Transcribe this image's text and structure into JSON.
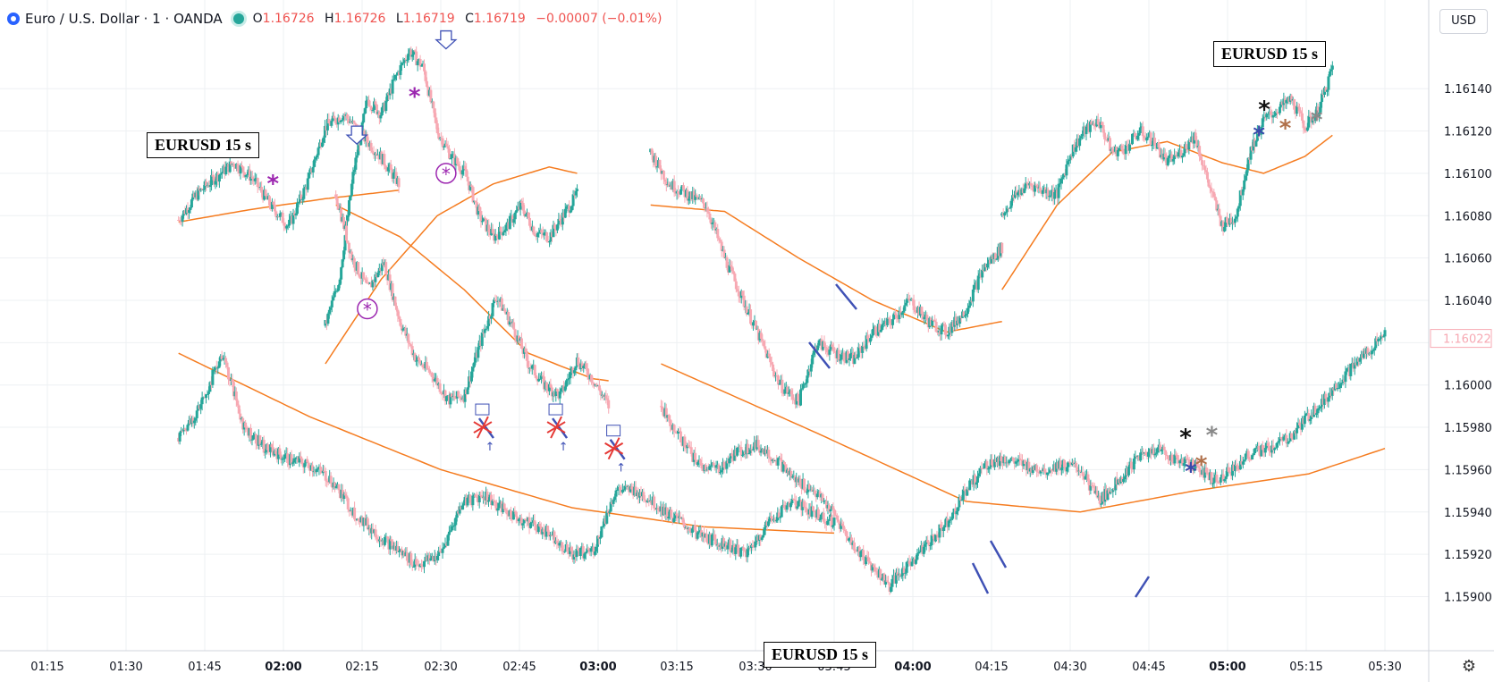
{
  "header": {
    "symbol": "Euro / U.S. Dollar",
    "sep1": "·",
    "interval": "1",
    "sep2": "·",
    "source": "OANDA",
    "o_label": "O",
    "o_value": "1.16726",
    "h_label": "H",
    "h_value": "1.16726",
    "l_label": "L",
    "l_value": "1.16719",
    "c_label": "C",
    "c_value": "1.16719",
    "change": "−0.00007 (−0.01%)"
  },
  "currency_button": "USD",
  "watermarks": [
    "EURUSD  15 s",
    "EURUSD  15 s",
    "EURUSD  15 s"
  ],
  "colors": {
    "up": "#26a69a",
    "down": "#ef5350",
    "down_light": "#f7a9b3",
    "ma": "#f57c20",
    "arrow": "#3f51b5",
    "cross": "#e53935",
    "star_purple": "#9c27b0",
    "grid": "#eef0f3",
    "axis_text": "#131722",
    "last_price_label": "#f7a9b3"
  },
  "icons": {
    "logo": "euro-dollar-logo",
    "live": "market-open-dot",
    "settings": "gear-icon"
  },
  "chart_data": {
    "type": "candlestick",
    "title": "Euro / U.S. Dollar · 1 · OANDA",
    "y_range": [
      1.15885,
      1.16165
    ],
    "y_ticks": [
      "1.16140",
      "1.16120",
      "1.16100",
      "1.16080",
      "1.16060",
      "1.16040",
      "1.16020",
      "1.16000",
      "1.15980",
      "1.15960",
      "1.15940",
      "1.15920",
      "1.15900"
    ],
    "x_ticks": [
      "01:15",
      "01:30",
      "01:45",
      "02:00",
      "02:15",
      "02:30",
      "02:45",
      "03:00",
      "03:15",
      "03:30",
      "03:45",
      "04:00",
      "04:15",
      "04:30",
      "04:45",
      "05:00",
      "05:15",
      "05:30"
    ],
    "x_ticks_bold": [
      "02:00",
      "03:00",
      "04:00",
      "05:00"
    ],
    "last_price": "1.16022",
    "segments": [
      {
        "name": "A",
        "start": "01:40",
        "end": "02:22",
        "points": [
          [
            0,
            1.16078
          ],
          [
            5,
            1.1609
          ],
          [
            10,
            1.16098
          ],
          [
            15,
            1.16105
          ],
          [
            20,
            1.16098
          ],
          [
            25,
            1.16085
          ],
          [
            30,
            1.16075
          ],
          [
            35,
            1.16095
          ],
          [
            40,
            1.16122
          ],
          [
            45,
            1.16128
          ],
          [
            50,
            1.16118
          ],
          [
            55,
            1.16108
          ],
          [
            60,
            1.16095
          ]
        ]
      },
      {
        "name": "B",
        "start": "02:08",
        "end": "02:56",
        "points": [
          [
            0,
            1.16028
          ],
          [
            5,
            1.1605
          ],
          [
            10,
            1.161
          ],
          [
            15,
            1.16135
          ],
          [
            20,
            1.16128
          ],
          [
            25,
            1.16145
          ],
          [
            30,
            1.16158
          ],
          [
            35,
            1.1615
          ],
          [
            40,
            1.1612
          ],
          [
            45,
            1.16108
          ],
          [
            50,
            1.161
          ],
          [
            55,
            1.1608
          ],
          [
            60,
            1.1607
          ],
          [
            65,
            1.16075
          ],
          [
            70,
            1.16085
          ],
          [
            75,
            1.16072
          ],
          [
            80,
            1.1607
          ],
          [
            85,
            1.1608
          ],
          [
            90,
            1.1609
          ]
        ]
      },
      {
        "name": "C",
        "start": "02:10",
        "end": "03:02",
        "points": [
          [
            0,
            1.1609
          ],
          [
            5,
            1.1606
          ],
          [
            10,
            1.16045
          ],
          [
            15,
            1.16058
          ],
          [
            20,
            1.1603
          ],
          [
            25,
            1.16012
          ],
          [
            30,
            1.16005
          ],
          [
            35,
            1.15993
          ],
          [
            40,
            1.15995
          ],
          [
            45,
            1.1602
          ],
          [
            50,
            1.16042
          ],
          [
            55,
            1.16028
          ],
          [
            60,
            1.1601
          ],
          [
            65,
            1.16
          ],
          [
            70,
            1.15995
          ],
          [
            75,
            1.16012
          ],
          [
            80,
            1.16003
          ],
          [
            85,
            1.1599
          ]
        ]
      },
      {
        "name": "D",
        "start": "03:10",
        "end": "04:17",
        "points": [
          [
            0,
            1.1611
          ],
          [
            5,
            1.16095
          ],
          [
            10,
            1.1609
          ],
          [
            15,
            1.16085
          ],
          [
            20,
            1.1606
          ],
          [
            25,
            1.1604
          ],
          [
            30,
            1.1602
          ],
          [
            35,
            1.16
          ],
          [
            40,
            1.15992
          ],
          [
            45,
            1.1602
          ],
          [
            50,
            1.16015
          ],
          [
            55,
            1.16012
          ],
          [
            60,
            1.16025
          ],
          [
            65,
            1.1603
          ],
          [
            70,
            1.1604
          ],
          [
            75,
            1.1603
          ],
          [
            80,
            1.16025
          ],
          [
            85,
            1.16035
          ],
          [
            90,
            1.16055
          ],
          [
            95,
            1.16065
          ]
        ]
      },
      {
        "name": "E",
        "start": "04:17",
        "end": "05:20",
        "points": [
          [
            0,
            1.1608
          ],
          [
            5,
            1.1609
          ],
          [
            10,
            1.16095
          ],
          [
            15,
            1.16092
          ],
          [
            20,
            1.1609
          ],
          [
            25,
            1.1611
          ],
          [
            30,
            1.1612
          ],
          [
            35,
            1.16125
          ],
          [
            40,
            1.1611
          ],
          [
            45,
            1.16112
          ],
          [
            50,
            1.1612
          ],
          [
            55,
            1.16115
          ],
          [
            60,
            1.16105
          ],
          [
            65,
            1.1611
          ],
          [
            70,
            1.16118
          ],
          [
            75,
            1.16095
          ],
          [
            80,
            1.16075
          ],
          [
            85,
            1.1608
          ],
          [
            90,
            1.1611
          ],
          [
            95,
            1.16125
          ],
          [
            100,
            1.1613
          ],
          [
            105,
            1.16135
          ],
          [
            110,
            1.16122
          ],
          [
            115,
            1.1613
          ],
          [
            120,
            1.1615
          ]
        ]
      },
      {
        "name": "F",
        "start": "01:40",
        "end": "03:45",
        "points": [
          [
            0,
            1.15975
          ],
          [
            5,
            1.1599
          ],
          [
            10,
            1.16015
          ],
          [
            15,
            1.1598
          ],
          [
            20,
            1.1597
          ],
          [
            25,
            1.15965
          ],
          [
            30,
            1.15962
          ],
          [
            35,
            1.15955
          ],
          [
            40,
            1.1594
          ],
          [
            45,
            1.1593
          ],
          [
            50,
            1.15922
          ],
          [
            55,
            1.15915
          ],
          [
            60,
            1.1592
          ],
          [
            65,
            1.15945
          ],
          [
            70,
            1.15948
          ],
          [
            75,
            1.1594
          ],
          [
            80,
            1.15935
          ],
          [
            85,
            1.1593
          ],
          [
            90,
            1.1592
          ],
          [
            95,
            1.15922
          ],
          [
            100,
            1.1595
          ],
          [
            105,
            1.1595
          ],
          [
            110,
            1.15942
          ],
          [
            115,
            1.15935
          ],
          [
            120,
            1.15928
          ],
          [
            125,
            1.15925
          ],
          [
            130,
            1.1592
          ],
          [
            135,
            1.15935
          ],
          [
            140,
            1.15945
          ],
          [
            145,
            1.1594
          ],
          [
            150,
            1.15935
          ]
        ]
      },
      {
        "name": "G",
        "start": "03:12",
        "end": "05:30",
        "points": [
          [
            0,
            1.1599
          ],
          [
            5,
            1.15975
          ],
          [
            10,
            1.15962
          ],
          [
            15,
            1.1596
          ],
          [
            20,
            1.15968
          ],
          [
            25,
            1.15972
          ],
          [
            30,
            1.15965
          ],
          [
            35,
            1.15955
          ],
          [
            40,
            1.1595
          ],
          [
            45,
            1.1594
          ],
          [
            50,
            1.15925
          ],
          [
            55,
            1.15915
          ],
          [
            60,
            1.15905
          ],
          [
            65,
            1.15915
          ],
          [
            70,
            1.15925
          ],
          [
            75,
            1.15935
          ],
          [
            80,
            1.1595
          ],
          [
            85,
            1.15962
          ],
          [
            90,
            1.15965
          ],
          [
            95,
            1.15962
          ],
          [
            100,
            1.1596
          ],
          [
            105,
            1.15962
          ],
          [
            110,
            1.1596
          ],
          [
            115,
            1.15945
          ],
          [
            120,
            1.15955
          ],
          [
            125,
            1.15965
          ],
          [
            130,
            1.1597
          ],
          [
            135,
            1.15965
          ],
          [
            140,
            1.15962
          ],
          [
            145,
            1.15955
          ],
          [
            150,
            1.1596
          ],
          [
            155,
            1.15968
          ],
          [
            160,
            1.1597
          ],
          [
            165,
            1.15975
          ],
          [
            170,
            1.15985
          ],
          [
            175,
            1.15995
          ],
          [
            180,
            1.16005
          ],
          [
            185,
            1.16015
          ],
          [
            190,
            1.16025
          ]
        ]
      }
    ],
    "moving_averages": [
      {
        "segment": "A",
        "points": [
          [
            0,
            1.16077
          ],
          [
            20,
            1.16083
          ],
          [
            40,
            1.16088
          ],
          [
            60,
            1.16092
          ]
        ]
      },
      {
        "segment": "B",
        "points": [
          [
            0,
            1.1601
          ],
          [
            20,
            1.1605
          ],
          [
            40,
            1.1608
          ],
          [
            60,
            1.16095
          ],
          [
            80,
            1.16103
          ],
          [
            90,
            1.161
          ]
        ]
      },
      {
        "segment": "C",
        "points": [
          [
            0,
            1.16085
          ],
          [
            20,
            1.1607
          ],
          [
            40,
            1.16045
          ],
          [
            60,
            1.16015
          ],
          [
            80,
            1.16003
          ],
          [
            85,
            1.16002
          ]
        ]
      },
      {
        "segment": "D",
        "points": [
          [
            0,
            1.16085
          ],
          [
            20,
            1.16082
          ],
          [
            40,
            1.1606
          ],
          [
            60,
            1.1604
          ],
          [
            80,
            1.16025
          ],
          [
            95,
            1.1603
          ]
        ]
      },
      {
        "segment": "E",
        "points": [
          [
            0,
            1.16045
          ],
          [
            20,
            1.16085
          ],
          [
            40,
            1.1611
          ],
          [
            60,
            1.16115
          ],
          [
            80,
            1.16105
          ],
          [
            95,
            1.161
          ],
          [
            110,
            1.16108
          ],
          [
            120,
            1.16118
          ]
        ]
      },
      {
        "segment": "F",
        "points": [
          [
            0,
            1.16015
          ],
          [
            30,
            1.15985
          ],
          [
            60,
            1.1596
          ],
          [
            90,
            1.15942
          ],
          [
            120,
            1.15933
          ],
          [
            150,
            1.1593
          ]
        ]
      },
      {
        "segment": "G",
        "points": [
          [
            0,
            1.1601
          ],
          [
            40,
            1.15978
          ],
          [
            80,
            1.15945
          ],
          [
            110,
            1.1594
          ],
          [
            140,
            1.1595
          ],
          [
            170,
            1.15958
          ],
          [
            190,
            1.1597
          ]
        ]
      }
    ],
    "annotations": [
      {
        "type": "asterisk",
        "color": "purple",
        "time": "01:58",
        "price": 1.16095
      },
      {
        "type": "asterisk",
        "color": "purple",
        "time": "02:25",
        "price": 1.16136
      },
      {
        "type": "circled-asterisk",
        "color": "purple",
        "time": "02:31",
        "price": 1.161
      },
      {
        "type": "circled-asterisk",
        "color": "purple",
        "time": "02:16",
        "price": 1.16036
      },
      {
        "type": "down-arrow",
        "color": "blue",
        "time": "02:14",
        "price": 1.16113
      },
      {
        "type": "down-arrow",
        "color": "blue",
        "time": "02:31",
        "price": 1.16158
      },
      {
        "type": "red-cross",
        "time": "02:38",
        "price": 1.1598
      },
      {
        "type": "red-cross",
        "time": "02:52",
        "price": 1.1598
      },
      {
        "type": "red-cross",
        "time": "03:03",
        "price": 1.1597
      },
      {
        "type": "asterisk",
        "color": "black",
        "time": "05:07",
        "price": 1.1613
      },
      {
        "type": "asterisk",
        "color": "blue",
        "time": "05:06",
        "price": 1.16118
      },
      {
        "type": "asterisk",
        "color": "brown",
        "time": "05:11",
        "price": 1.16121
      },
      {
        "type": "asterisk",
        "color": "gray",
        "time": "05:17",
        "price": 1.16125
      },
      {
        "type": "asterisk",
        "color": "black",
        "time": "04:52",
        "price": 1.15975
      },
      {
        "type": "asterisk",
        "color": "gray",
        "time": "04:57",
        "price": 1.15976
      },
      {
        "type": "asterisk",
        "color": "blue",
        "time": "04:53",
        "price": 1.15959
      },
      {
        "type": "asterisk",
        "color": "brown",
        "time": "04:55",
        "price": 1.15962
      }
    ],
    "xlabel": "",
    "ylabel": ""
  }
}
